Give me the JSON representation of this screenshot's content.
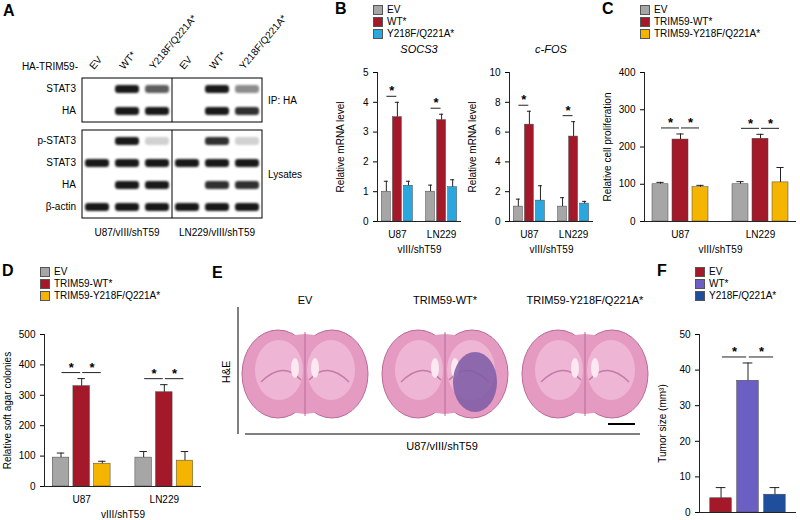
{
  "chart_data": [
    {
      "type": "bar",
      "panel": "B",
      "title": "SOCS3",
      "ylabel": "Relative mRNA level",
      "xlabel": "vIII/shT59",
      "categories": [
        "U87",
        "LN229"
      ],
      "series": [
        {
          "name": "EV",
          "color": "#a6a6a6",
          "values": [
            1,
            1
          ],
          "errors": [
            0.35,
            0.22
          ]
        },
        {
          "name": "WT*",
          "color": "#a3192a",
          "values": [
            3.5,
            3.4
          ],
          "errors": [
            0.5,
            0.2
          ]
        },
        {
          "name": "Y218F/Q221A*",
          "color": "#2aa7df",
          "values": [
            1.2,
            1.15
          ],
          "errors": [
            0.15,
            0.25
          ]
        }
      ],
      "ylim": [
        0,
        5
      ],
      "yticks": [
        0,
        1,
        2,
        3,
        4,
        5
      ],
      "legend": "top-left",
      "significance": [
        {
          "category": "U87",
          "pair": [
            "EV",
            "WT*"
          ],
          "label": "*"
        },
        {
          "category": "LN229",
          "pair": [
            "EV",
            "WT*"
          ],
          "label": "*"
        }
      ]
    },
    {
      "type": "bar",
      "title": "c-FOS",
      "ylabel": "Relative mRNA level",
      "xlabel": "vIII/shT59",
      "categories": [
        "U87",
        "LN229"
      ],
      "series": [
        {
          "name": "EV",
          "color": "#a6a6a6",
          "values": [
            1,
            1
          ],
          "errors": [
            0.5,
            0.6
          ]
        },
        {
          "name": "WT*",
          "color": "#a3192a",
          "values": [
            6.5,
            5.7
          ],
          "errors": [
            0.9,
            1.0
          ]
        },
        {
          "name": "Y218F/Q221A*",
          "color": "#2aa7df",
          "values": [
            1.4,
            1.2
          ],
          "errors": [
            1.0,
            0.15
          ]
        }
      ],
      "ylim": [
        0,
        10
      ],
      "yticks": [
        0,
        2,
        4,
        6,
        8,
        10
      ],
      "significance": [
        {
          "category": "U87",
          "pair": [
            "EV",
            "WT*"
          ],
          "label": "*"
        },
        {
          "category": "LN229",
          "pair": [
            "EV",
            "WT*"
          ],
          "label": "*"
        }
      ]
    },
    {
      "type": "bar",
      "panel": "C",
      "ylabel": "Relative cell proliferation",
      "xlabel": "vIII/shT59",
      "categories": [
        "U87",
        "LN229"
      ],
      "series": [
        {
          "name": "EV",
          "color": "#a6a6a6",
          "values": [
            100,
            100
          ],
          "errors": [
            5,
            7
          ]
        },
        {
          "name": "TRIM59-WT*",
          "color": "#a3192a",
          "values": [
            220,
            222
          ],
          "errors": [
            15,
            12
          ]
        },
        {
          "name": "TRIM59-Y218F/Q221A*",
          "color": "#f5b400",
          "values": [
            92,
            105
          ],
          "errors": [
            5,
            40
          ]
        }
      ],
      "ylim": [
        0,
        400
      ],
      "yticks": [
        0,
        100,
        200,
        300,
        400
      ],
      "legend": "top-left",
      "significance": [
        {
          "category": "U87",
          "pair": [
            "EV",
            "TRIM59-WT*"
          ],
          "label": "*"
        },
        {
          "category": "U87",
          "pair": [
            "TRIM59-WT*",
            "TRIM59-Y218F/Q221A*"
          ],
          "label": "*"
        },
        {
          "category": "LN229",
          "pair": [
            "EV",
            "TRIM59-WT*"
          ],
          "label": "*"
        },
        {
          "category": "LN229",
          "pair": [
            "TRIM59-WT*",
            "TRIM59-Y218F/Q221A*"
          ],
          "label": "*"
        }
      ]
    },
    {
      "type": "bar",
      "panel": "D",
      "ylabel": "Relative soft agar colonies",
      "xlabel": "vIII/shT59",
      "categories": [
        "U87",
        "LN229"
      ],
      "series": [
        {
          "name": "EV",
          "color": "#a6a6a6",
          "values": [
            95,
            95
          ],
          "errors": [
            15,
            20
          ]
        },
        {
          "name": "TRIM59-WT*",
          "color": "#a3192a",
          "values": [
            330,
            310
          ],
          "errors": [
            25,
            25
          ]
        },
        {
          "name": "TRIM59-Y218F/Q221A*",
          "color": "#f5b400",
          "values": [
            75,
            85
          ],
          "errors": [
            8,
            30
          ]
        }
      ],
      "ylim": [
        0,
        500
      ],
      "yticks": [
        0,
        100,
        200,
        300,
        400,
        500
      ],
      "legend": "top-left",
      "significance": [
        {
          "category": "U87",
          "pair": [
            "EV",
            "TRIM59-WT*"
          ],
          "label": "*"
        },
        {
          "category": "U87",
          "pair": [
            "TRIM59-WT*",
            "TRIM59-Y218F/Q221A*"
          ],
          "label": "*"
        },
        {
          "category": "LN229",
          "pair": [
            "EV",
            "TRIM59-WT*"
          ],
          "label": "*"
        },
        {
          "category": "LN229",
          "pair": [
            "TRIM59-WT*",
            "TRIM59-Y218F/Q221A*"
          ],
          "label": "*"
        }
      ]
    },
    {
      "type": "bar",
      "panel": "F",
      "ylabel": "Tumor size (mm³)",
      "categories": [
        "EV",
        "WT*",
        "Y218F/Q221A*"
      ],
      "values": [
        4,
        37,
        5
      ],
      "errors": [
        3,
        5,
        2
      ],
      "colors": [
        "#a3192a",
        "#6b5fc4",
        "#1f4f9c"
      ],
      "ylim": [
        0,
        50
      ],
      "yticks": [
        0,
        10,
        20,
        30,
        40,
        50
      ],
      "legend": "top-left",
      "tick_labels": "y",
      "significance": [
        {
          "pair": [
            "EV",
            "WT*"
          ],
          "label": "*"
        },
        {
          "pair": [
            "WT*",
            "Y218F/Q221A*"
          ],
          "label": "*"
        }
      ]
    }
  ],
  "blot": {
    "panel": "A",
    "lane_header": "HA-TRIM59-",
    "lanes": [
      "EV",
      "WT*",
      "Y218F/Q221A*",
      "EV",
      "WT*",
      "Y218F/Q221A*"
    ],
    "groups": [
      {
        "label": "IP: HA",
        "rows": [
          {
            "label": "STAT3",
            "intensity": [
              0,
              1,
              0.7,
              0,
              1,
              0.5
            ]
          },
          {
            "label": "HA",
            "intensity": [
              0,
              1,
              1,
              0,
              1,
              0.9
            ]
          }
        ]
      },
      {
        "label": "Lysates",
        "rows": [
          {
            "label": "p-STAT3",
            "intensity": [
              0,
              1,
              0.2,
              0,
              0.9,
              0.2
            ]
          },
          {
            "label": "STAT3",
            "intensity": [
              1,
              1,
              1,
              1,
              1,
              1
            ]
          },
          {
            "label": "HA",
            "intensity": [
              0,
              1,
              1,
              0,
              0.9,
              0.9
            ]
          },
          {
            "label": "β-actin",
            "intensity": [
              1,
              1,
              1,
              1,
              1,
              1
            ]
          }
        ]
      }
    ],
    "cell_lines": [
      "U87/vIII/shT59",
      "LN229/vIII/shT59"
    ]
  },
  "histology": {
    "panel": "E",
    "stain": "H&E",
    "conditions": [
      "EV",
      "TRIM59-WT*",
      "TRIM59-Y218F/Q221A*"
    ],
    "tumor": [
      false,
      true,
      false
    ],
    "cell_line": "U87/vIII/shT59"
  }
}
